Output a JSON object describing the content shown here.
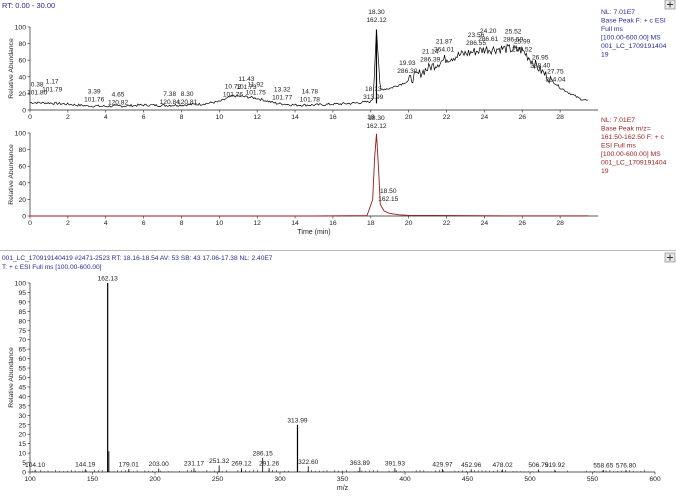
{
  "top_header": {
    "rt_range": "RT: 0.00 - 30.00"
  },
  "pin_icon_label": "pin-icon",
  "chromatogram_1": {
    "info": [
      "NL: 7.01E7",
      "Base Peak F: + c ESI",
      "Full ms",
      "[100.00-600.00]  MS",
      "001_LC_1709191404",
      "19"
    ],
    "peak_labels": [
      {
        "rt": "0.38",
        "mz": "101.80"
      },
      {
        "rt": "1.17",
        "mz": "101.79"
      },
      {
        "rt": "3.39",
        "mz": "101.76"
      },
      {
        "rt": "4.65",
        "mz": "120.82"
      },
      {
        "rt": "7.38",
        "mz": "120.84"
      },
      {
        "rt": "8.30",
        "mz": "120.81"
      },
      {
        "rt": "10.72",
        "mz": "101.76"
      },
      {
        "rt": "11.43",
        "mz": "101.73"
      },
      {
        "rt": "11.92",
        "mz": "101.75"
      },
      {
        "rt": "13.32",
        "mz": "101.77"
      },
      {
        "rt": "14.78",
        "mz": "101.78"
      },
      {
        "rt": "18.13",
        "mz": "313.99"
      },
      {
        "rt": "18.30",
        "mz": "162.12"
      },
      {
        "rt": "19.93",
        "mz": "286.30"
      },
      {
        "rt": "21.14",
        "mz": "286.39"
      },
      {
        "rt": "21.87",
        "mz": "364.01"
      },
      {
        "rt": "23.56",
        "mz": "286.55"
      },
      {
        "rt": "24.20",
        "mz": "286.61"
      },
      {
        "rt": "25.52",
        "mz": "286.59"
      },
      {
        "rt": "25.99",
        "mz": "286.52"
      },
      {
        "rt": "26.95",
        "mz": "288.40"
      },
      {
        "rt": "27.75",
        "mz": "314.04"
      }
    ]
  },
  "chromatogram_2": {
    "info": [
      "NL: 7.01E7",
      "Base Peak m/z=",
      "161.50-162.50 F: + c",
      "ESI Full ms",
      "[100.00-600.00]  MS",
      "001_LC_1709191404",
      "19"
    ],
    "peak_labels": [
      {
        "rt": "18.30",
        "mz": "162.12"
      },
      {
        "rt": "18.50",
        "mz": "162.15"
      }
    ]
  },
  "spectrum_header": {
    "line1": "001_LC_170919140419 #2471-2523   RT: 18.16-18.54   AV: 53   SB: 43  17.06-17.38   NL: 2.40E7",
    "line2": "T: + c ESI Full ms [100.00-600.00]"
  },
  "chart_data": [
    {
      "type": "line",
      "title": "",
      "xlabel": "",
      "ylabel": "Relative Abundance",
      "xlim": [
        0,
        30
      ],
      "ylim": [
        0,
        100
      ],
      "x_ticks": [
        0,
        2,
        4,
        6,
        8,
        10,
        12,
        14,
        16,
        18,
        20,
        22,
        24,
        26,
        28
      ],
      "y_ticks": [
        0,
        20,
        40,
        60,
        80,
        100
      ],
      "series": [
        {
          "name": "Base Peak F: + c ESI Full ms",
          "x": [
            0,
            1,
            2,
            3,
            4,
            5,
            6,
            7,
            8,
            9,
            10,
            10.7,
            11.4,
            12,
            13,
            14,
            15,
            16,
            17,
            18,
            18.13,
            18.3,
            18.5,
            19,
            19.9,
            21,
            22,
            23,
            24,
            25,
            26,
            27,
            28,
            29,
            29.5
          ],
          "y": [
            9,
            8.5,
            7,
            5,
            4.5,
            5,
            6,
            5.5,
            6,
            7,
            10,
            17,
            16,
            14,
            8,
            6,
            6,
            7,
            8,
            10,
            14,
            97,
            25,
            26,
            34,
            50,
            62,
            68,
            73,
            74,
            72,
            47,
            27,
            14,
            11
          ]
        }
      ],
      "color": "#000000"
    },
    {
      "type": "line",
      "title": "",
      "xlabel": "Time (min)",
      "ylabel": "Relative Abundance",
      "xlim": [
        0,
        30
      ],
      "ylim": [
        0,
        100
      ],
      "x_ticks": [
        0,
        2,
        4,
        6,
        8,
        10,
        12,
        14,
        16,
        18,
        20,
        22,
        24,
        26,
        28
      ],
      "y_ticks": [
        0,
        20,
        40,
        60,
        80,
        100
      ],
      "series": [
        {
          "name": "Base Peak m/z= 161.50-162.50",
          "x": [
            0,
            5,
            10,
            15,
            17.8,
            18.1,
            18.2,
            18.3,
            18.4,
            18.5,
            18.7,
            19,
            19.5,
            20,
            25,
            29.5
          ],
          "y": [
            0,
            0,
            0,
            0,
            0.5,
            20,
            70,
            99,
            60,
            14,
            6,
            3,
            1.5,
            0.8,
            0.3,
            0.2
          ]
        }
      ],
      "color": "#9a1a1a"
    },
    {
      "type": "bar",
      "title": "",
      "xlabel": "m/z",
      "ylabel": "Relative Abundance",
      "xlim": [
        100,
        600
      ],
      "ylim": [
        0,
        100
      ],
      "x_ticks": [
        100,
        150,
        200,
        250,
        300,
        350,
        400,
        450,
        500,
        550,
        600
      ],
      "y_ticks": [
        0,
        5,
        10,
        15,
        20,
        25,
        30,
        35,
        40,
        45,
        50,
        55,
        60,
        65,
        70,
        75,
        80,
        85,
        90,
        95,
        100
      ],
      "peaks": [
        {
          "mz": 104.1,
          "value": 1.2,
          "label": "104.10"
        },
        {
          "mz": 144.19,
          "value": 1.5,
          "label": "144.19"
        },
        {
          "mz": 162.13,
          "value": 100,
          "label": "162.13"
        },
        {
          "mz": 163.13,
          "value": 11,
          "label": ""
        },
        {
          "mz": 179.01,
          "value": 1.6,
          "label": "179.01"
        },
        {
          "mz": 203.0,
          "value": 1.8,
          "label": "203.00"
        },
        {
          "mz": 231.17,
          "value": 2.0,
          "label": "231.17"
        },
        {
          "mz": 251.32,
          "value": 3.5,
          "label": "251.32"
        },
        {
          "mz": 269.12,
          "value": 2.0,
          "label": "269.12"
        },
        {
          "mz": 286.15,
          "value": 7.5,
          "label": "286.15"
        },
        {
          "mz": 291.26,
          "value": 2.0,
          "label": "291.26"
        },
        {
          "mz": 313.99,
          "value": 25,
          "label": "313.99"
        },
        {
          "mz": 322.6,
          "value": 3.0,
          "label": "322.60"
        },
        {
          "mz": 363.89,
          "value": 2.5,
          "label": "363.89"
        },
        {
          "mz": 391.93,
          "value": 2.0,
          "label": "391.93"
        },
        {
          "mz": 429.97,
          "value": 1.5,
          "label": "429.97"
        },
        {
          "mz": 452.96,
          "value": 1.4,
          "label": "452.96"
        },
        {
          "mz": 478.02,
          "value": 1.3,
          "label": "478.02"
        },
        {
          "mz": 506.79,
          "value": 1.3,
          "label": "506.79"
        },
        {
          "mz": 519.92,
          "value": 1.2,
          "label": "519.92"
        },
        {
          "mz": 558.65,
          "value": 1.1,
          "label": "558.65"
        },
        {
          "mz": 576.8,
          "value": 1.1,
          "label": "576.80"
        }
      ],
      "color": "#000000"
    }
  ]
}
